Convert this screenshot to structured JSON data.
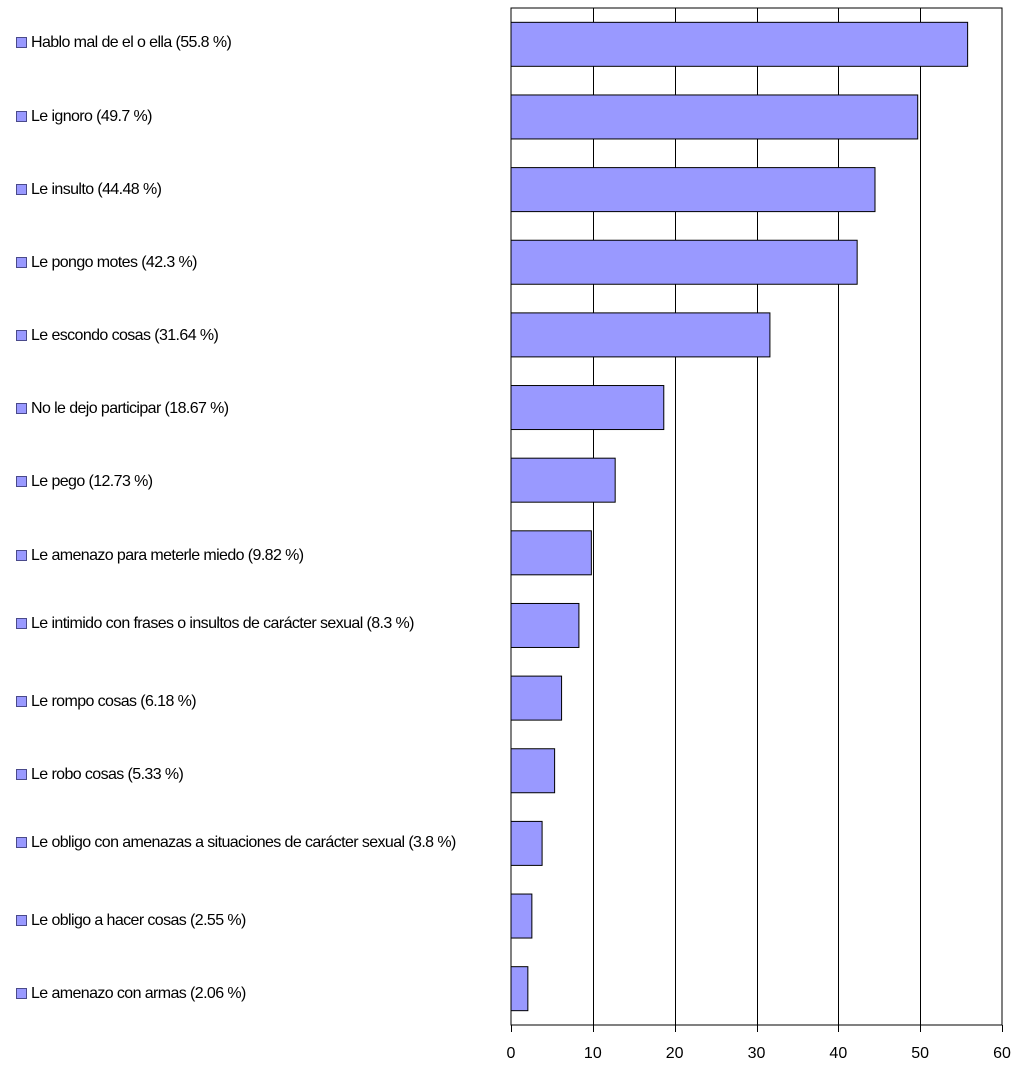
{
  "colors": {
    "bar_fill": "#9999ff",
    "bar_stroke": "#000000",
    "grid": "#000000",
    "background": "#ffffff"
  },
  "legend": {
    "items": [
      "Hablo mal de el o ella  (55.8 %)",
      "Le ignoro  (49.7 %)",
      "Le insulto  (44.48 %)",
      "Le pongo motes  (42.3 %)",
      "Le escondo cosas  (31.64 %)",
      "No le dejo participar  (18.67 %)",
      "Le pego  (12.73 %)",
      "Le amenazo para meterle miedo  (9.82 %)",
      "Le intimido con frases o insultos de carácter sexual  (8.3 %)",
      "Le rompo cosas  (6.18 %)",
      "Le robo cosas  (5.33 %)",
      "Le obligo con amenazas a situaciones de carácter sexual  (3.8 %)",
      "Le obligo a hacer cosas  (2.55 %)",
      "Le amenazo con armas  (2.06 %)"
    ]
  },
  "chart_data": {
    "type": "bar",
    "orientation": "horizontal",
    "title": "",
    "xlabel": "",
    "ylabel": "",
    "xlim": [
      0,
      60
    ],
    "xticks": [
      0,
      10,
      20,
      30,
      40,
      50,
      60
    ],
    "grid": true,
    "legend_position": "left",
    "categories": [
      "Hablo mal de el o ella  (55.8 %)",
      "Le ignoro  (49.7 %)",
      "Le insulto  (44.48 %)",
      "Le pongo motes  (42.3 %)",
      "Le escondo cosas  (31.64 %)",
      "No le dejo participar  (18.67 %)",
      "Le pego  (12.73 %)",
      "Le amenazo para meterle miedo  (9.82 %)",
      "Le intimido con frases o insultos de carácter sexual  (8.3 %)",
      "Le rompo cosas  (6.18 %)",
      "Le robo cosas  (5.33 %)",
      "Le obligo con amenazas a situaciones de carácter sexual  (3.8 %)",
      "Le obligo a hacer cosas  (2.55 %)",
      "Le amenazo con armas  (2.06 %)"
    ],
    "values": [
      55.8,
      49.7,
      44.48,
      42.3,
      31.64,
      18.67,
      12.73,
      9.82,
      8.3,
      6.18,
      5.33,
      3.8,
      2.55,
      2.06
    ]
  }
}
